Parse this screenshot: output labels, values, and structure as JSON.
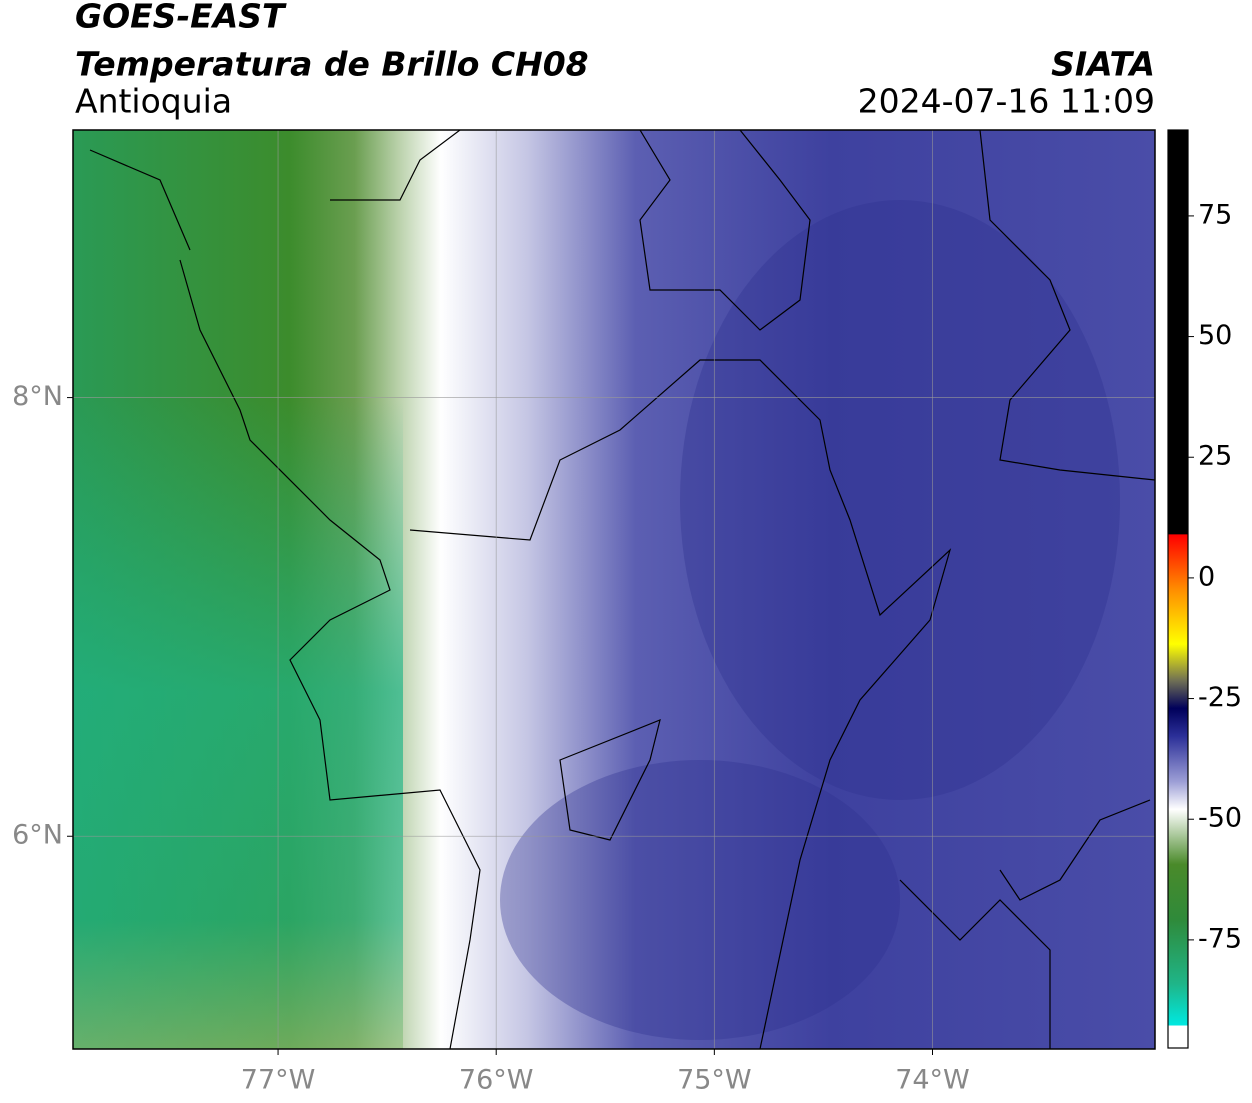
{
  "header": {
    "title": "GOES-EAST",
    "subtitle": "Temperatura de Brillo CH08",
    "region": "Antioquia",
    "source": "SIATA",
    "datetime": "2024-07-16 11:09"
  },
  "map": {
    "lonlim": [
      -77.94,
      -72.98
    ],
    "latlim": [
      5.03,
      9.22
    ],
    "lon_ticks": [
      {
        "value": -77,
        "label": "77°W"
      },
      {
        "value": -76,
        "label": "76°W"
      },
      {
        "value": -75,
        "label": "75°W"
      },
      {
        "value": -74,
        "label": "74°W"
      }
    ],
    "lat_ticks": [
      {
        "value": 8,
        "label": "8°N"
      },
      {
        "value": 6,
        "label": "6°N"
      }
    ],
    "grid": true
  },
  "colorbar": {
    "lim": [
      -97.4,
      92.8
    ],
    "ticks": [
      75,
      50,
      25,
      0,
      -25,
      -50,
      -75
    ]
  }
}
